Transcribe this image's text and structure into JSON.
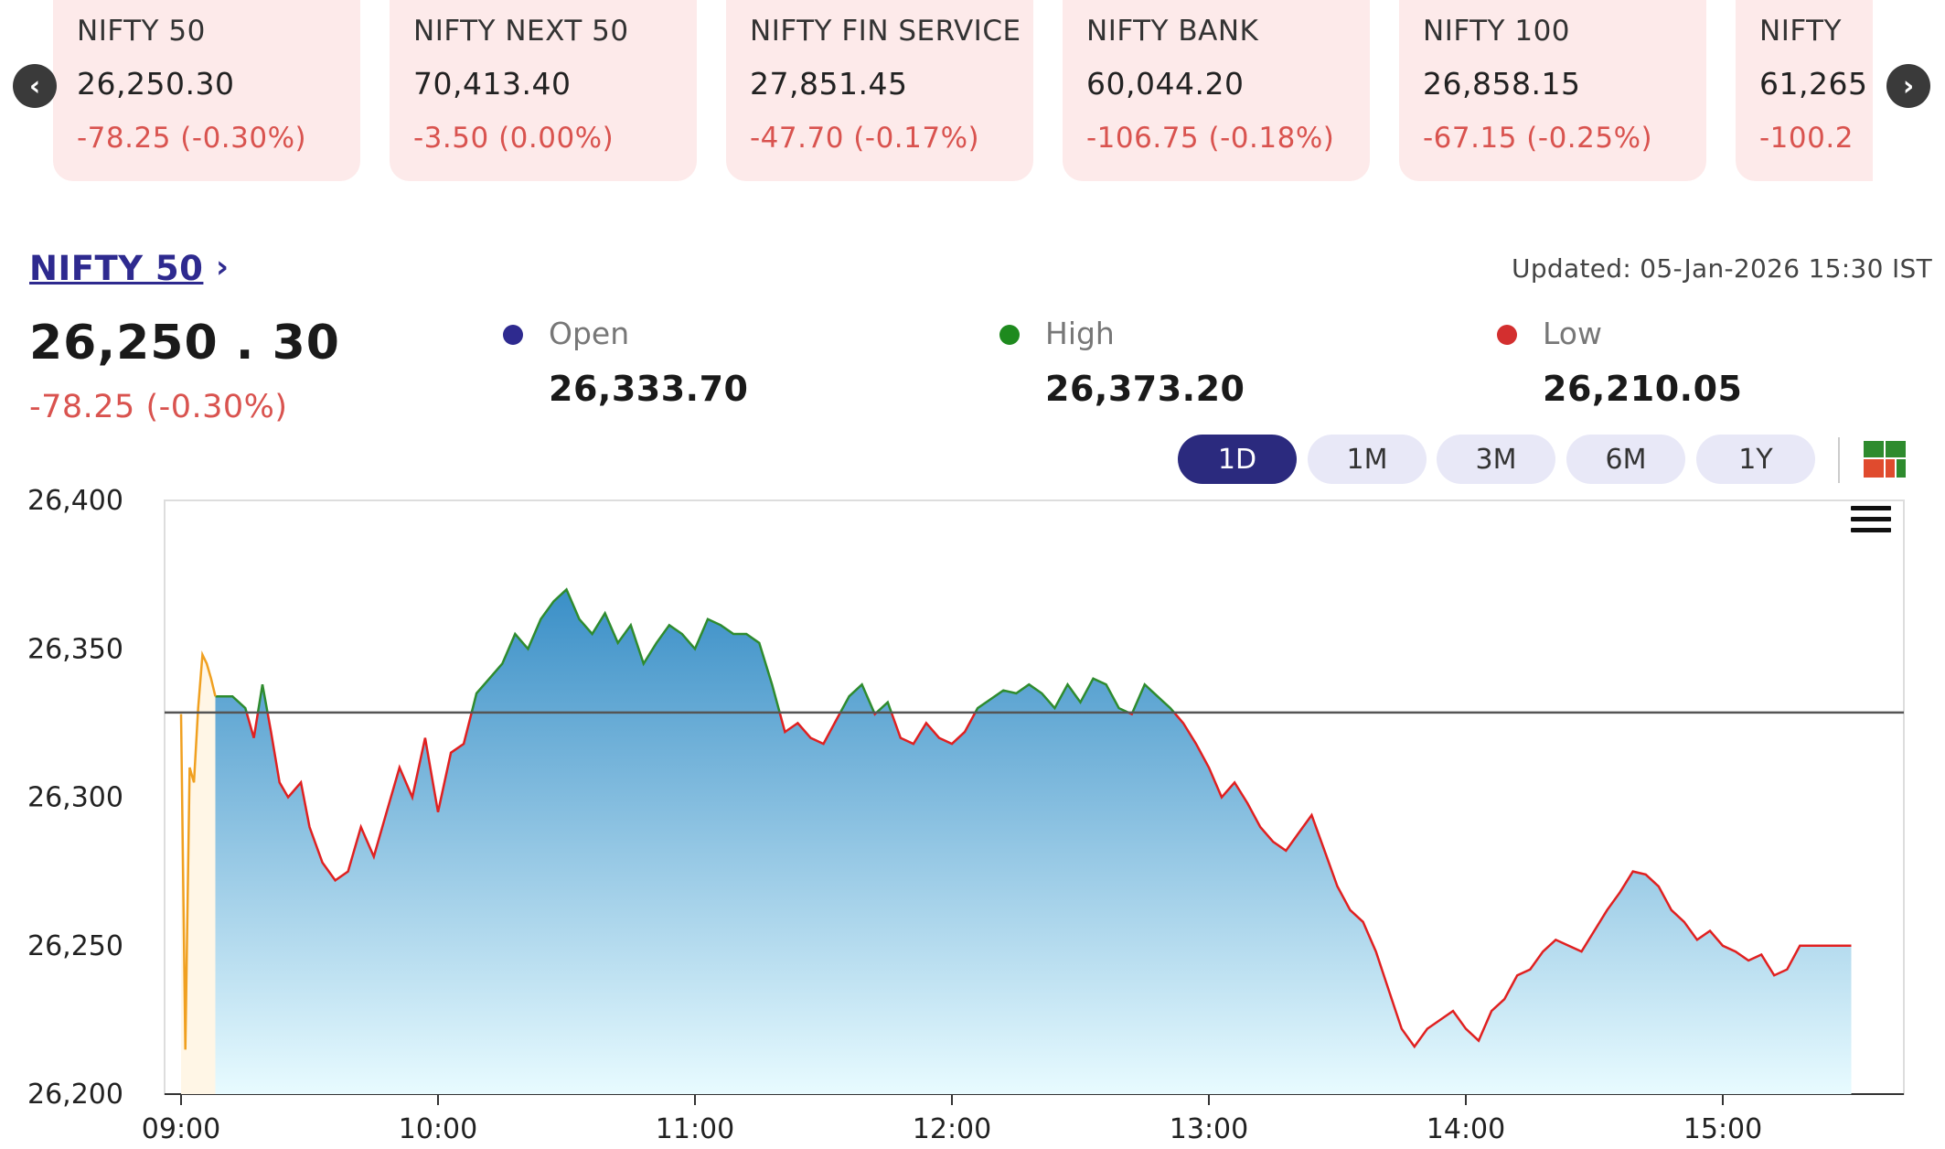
{
  "ticker": {
    "prev_icon": "chevron-left-icon",
    "next_icon": "chevron-right-icon",
    "items": [
      {
        "name": "NIFTY 50",
        "value": "26,250.30",
        "change": "-78.25 (-0.30%)"
      },
      {
        "name": "NIFTY NEXT 50",
        "value": "70,413.40",
        "change": "-3.50 (0.00%)"
      },
      {
        "name": "NIFTY FIN SERVICE",
        "value": "27,851.45",
        "change": "-47.70 (-0.17%)"
      },
      {
        "name": "NIFTY BANK",
        "value": "60,044.20",
        "change": "-106.75 (-0.18%)"
      },
      {
        "name": "NIFTY 100",
        "value": "26,858.15",
        "change": "-67.15 (-0.25%)"
      },
      {
        "name": "NIFTY",
        "value": "61,265",
        "change": "-100.2"
      }
    ]
  },
  "header": {
    "index_name": "NIFTY 50",
    "chevron": "›",
    "updated": "Updated: 05-Jan-2026 15:30 IST",
    "value": "26,250 . 30",
    "change": "-78.25 (-0.30%)"
  },
  "stats": {
    "open": {
      "label": "Open",
      "value": "26,333.70",
      "color": "#2e2a8f"
    },
    "high": {
      "label": "High",
      "value": "26,373.20",
      "color": "#1e8a1e"
    },
    "low": {
      "label": "Low",
      "value": "26,210.05",
      "color": "#d32f2f"
    }
  },
  "ranges": {
    "options": [
      "1D",
      "1M",
      "3M",
      "6M",
      "1Y"
    ],
    "selected": "1D"
  },
  "colors": {
    "up": "#2e8b2e",
    "down": "#e02020",
    "preopen": "#f0a020",
    "fill_top": "#3a8fc7",
    "fill_bottom": "#e8fbff",
    "baseline": "#555555",
    "change_negative": "#d9534f"
  },
  "chart_data": {
    "type": "area",
    "xlabel": "",
    "ylabel": "",
    "ylim": [
      26200,
      26400
    ],
    "y_ticks": [
      26200,
      26250,
      26300,
      26350,
      26400
    ],
    "y_tick_labels": [
      "26,200",
      "26,250",
      "26,300",
      "26,350",
      "26,400"
    ],
    "x_ticks": [
      "09:00",
      "10:00",
      "11:00",
      "12:00",
      "13:00",
      "14:00",
      "15:00"
    ],
    "baseline": 26328.55,
    "pre_open": {
      "x": [
        "09:00",
        "09:01",
        "09:02",
        "09:03",
        "09:04",
        "09:05",
        "09:06",
        "09:07",
        "09:08"
      ],
      "y": [
        26328,
        26215,
        26310,
        26305,
        26330,
        26348,
        26345,
        26340,
        26334
      ]
    },
    "series": [
      {
        "x": [
          "09:08",
          "09:12",
          "09:15",
          "09:17",
          "09:19",
          "09:21",
          "09:23",
          "09:25",
          "09:28",
          "09:30",
          "09:33",
          "09:36",
          "09:39",
          "09:42",
          "09:45",
          "09:48",
          "09:51",
          "09:54",
          "09:57",
          "10:00",
          "10:03",
          "10:06",
          "10:09",
          "10:12",
          "10:15",
          "10:18",
          "10:21",
          "10:24",
          "10:27",
          "10:30",
          "10:33",
          "10:36",
          "10:39",
          "10:42",
          "10:45",
          "10:48",
          "10:51",
          "10:54",
          "10:57",
          "11:00",
          "11:03",
          "11:06",
          "11:09",
          "11:12",
          "11:15",
          "11:18",
          "11:21",
          "11:24",
          "11:27",
          "11:30",
          "11:33",
          "11:36",
          "11:39",
          "11:42",
          "11:45",
          "11:48",
          "11:51",
          "11:54",
          "11:57",
          "12:00",
          "12:03",
          "12:06",
          "12:09",
          "12:12",
          "12:15",
          "12:18",
          "12:21",
          "12:24",
          "12:27",
          "12:30",
          "12:33",
          "12:36",
          "12:39",
          "12:42",
          "12:45",
          "12:48",
          "12:51",
          "12:54",
          "12:57",
          "13:00",
          "13:03",
          "13:06",
          "13:09",
          "13:12",
          "13:15",
          "13:18",
          "13:21",
          "13:24",
          "13:27",
          "13:30",
          "13:33",
          "13:36",
          "13:39",
          "13:42",
          "13:45",
          "13:48",
          "13:51",
          "13:54",
          "13:57",
          "14:00",
          "14:03",
          "14:06",
          "14:09",
          "14:12",
          "14:15",
          "14:18",
          "14:21",
          "14:24",
          "14:27",
          "14:30",
          "14:33",
          "14:36",
          "14:39",
          "14:42",
          "14:45",
          "14:48",
          "14:51",
          "14:54",
          "14:57",
          "15:00",
          "15:03",
          "15:06",
          "15:09",
          "15:12",
          "15:15",
          "15:18",
          "15:21",
          "15:24",
          "15:27",
          "15:30"
        ],
        "y": [
          26334,
          26334,
          26330,
          26320,
          26338,
          26322,
          26305,
          26300,
          26305,
          26290,
          26278,
          26272,
          26275,
          26290,
          26280,
          26295,
          26310,
          26300,
          26320,
          26295,
          26315,
          26318,
          26335,
          26340,
          26345,
          26355,
          26350,
          26360,
          26366,
          26370,
          26360,
          26355,
          26362,
          26352,
          26358,
          26345,
          26352,
          26358,
          26355,
          26350,
          26360,
          26358,
          26355,
          26355,
          26352,
          26338,
          26322,
          26325,
          26320,
          26318,
          26326,
          26334,
          26338,
          26328,
          26332,
          26320,
          26318,
          26325,
          26320,
          26318,
          26322,
          26330,
          26333,
          26336,
          26335,
          26338,
          26335,
          26330,
          26338,
          26332,
          26340,
          26338,
          26330,
          26328,
          26338,
          26334,
          26330,
          26325,
          26318,
          26310,
          26300,
          26305,
          26298,
          26290,
          26285,
          26282,
          26288,
          26294,
          26282,
          26270,
          26262,
          26258,
          26248,
          26235,
          26222,
          26216,
          26222,
          26225,
          26228,
          26222,
          26218,
          26228,
          26232,
          26240,
          26242,
          26248,
          26252,
          26250,
          26248,
          26255,
          26262,
          26268,
          26275,
          26274,
          26270,
          26262,
          26258,
          26252,
          26255,
          26250,
          26248,
          26245,
          26247,
          26240,
          26242,
          26250,
          26250,
          26250,
          26250,
          26250
        ]
      }
    ]
  }
}
